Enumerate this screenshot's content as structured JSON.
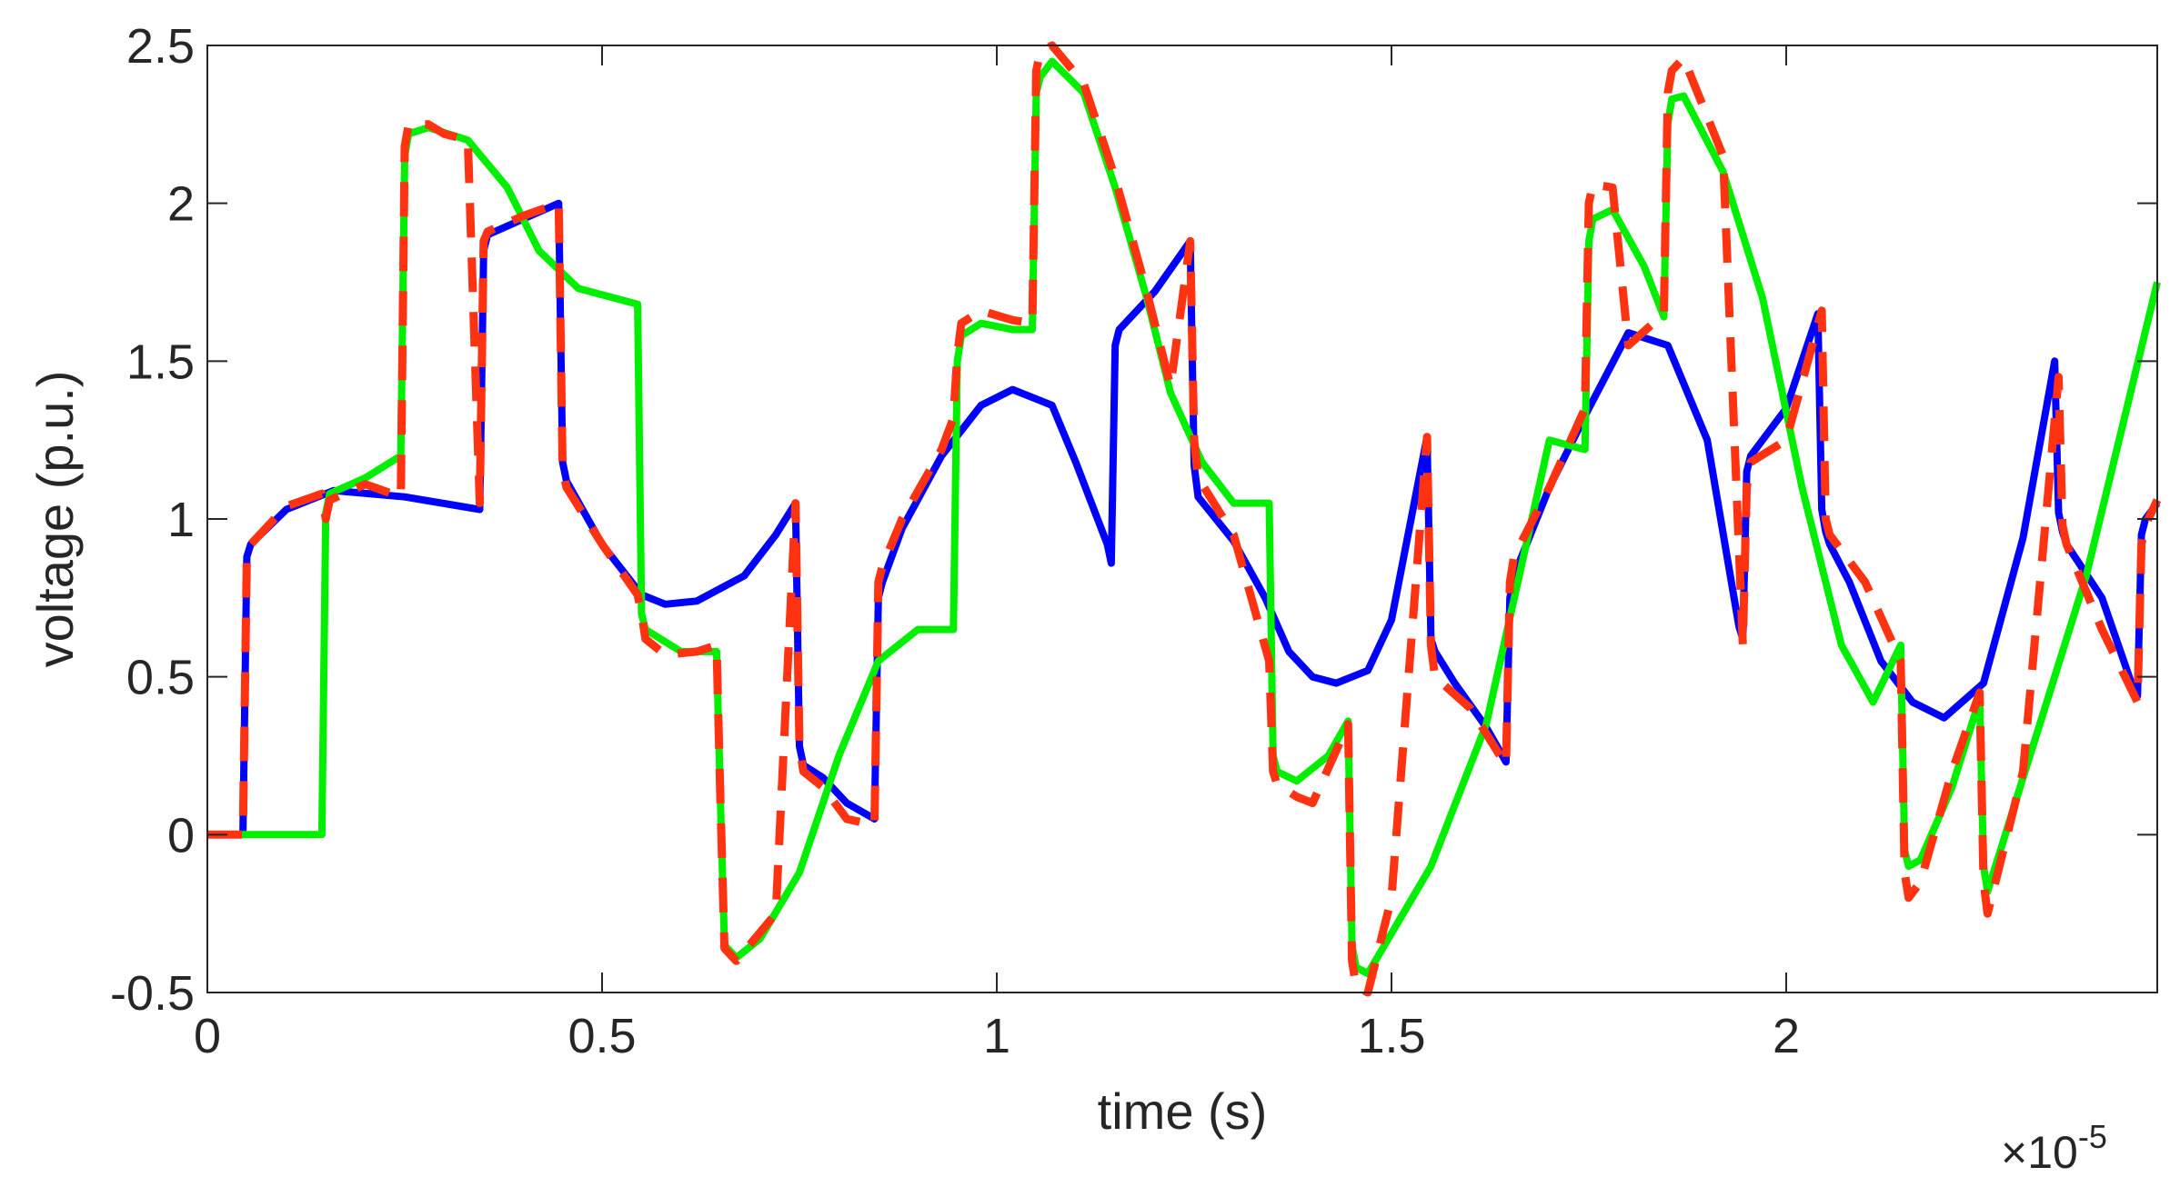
{
  "chart_data": {
    "type": "line",
    "title": "",
    "xlabel": "time (s)",
    "ylabel": "voltage (p.u.)",
    "x_scale_label": {
      "base": "×10",
      "exponent": "-5"
    },
    "xlim": [
      0,
      2.47
    ],
    "ylim": [
      -0.5,
      2.5
    ],
    "x_ticks": [
      0,
      0.5,
      1,
      1.5,
      2
    ],
    "x_tick_labels": [
      "0",
      "0.5",
      "1",
      "1.5",
      "2"
    ],
    "y_ticks": [
      -0.5,
      0,
      0.5,
      1,
      1.5,
      2,
      2.5
    ],
    "y_tick_labels": [
      "-0.5",
      "0",
      "0.5",
      "1",
      "1.5",
      "2",
      "2.5"
    ],
    "grid": false,
    "legend": "none",
    "series": [
      {
        "color": "#0000ff",
        "style": "solid",
        "x": [
          0,
          0.045,
          0.05,
          0.055,
          0.1,
          0.16,
          0.25,
          0.345,
          0.35,
          0.355,
          0.4,
          0.445,
          0.45,
          0.455,
          0.5,
          0.55,
          0.58,
          0.62,
          0.68,
          0.72,
          0.745,
          0.75,
          0.755,
          0.78,
          0.81,
          0.845,
          0.85,
          0.855,
          0.88,
          0.93,
          0.98,
          1.02,
          1.07,
          1.1,
          1.14,
          1.145,
          1.15,
          1.155,
          1.2,
          1.245,
          1.25,
          1.255,
          1.3,
          1.34,
          1.37,
          1.4,
          1.43,
          1.47,
          1.5,
          1.545,
          1.55,
          1.555,
          1.58,
          1.62,
          1.645,
          1.65,
          1.655,
          1.7,
          1.75,
          1.8,
          1.85,
          1.9,
          1.94,
          1.945,
          1.95,
          1.955,
          2.0,
          2.04,
          2.045,
          2.05,
          2.055,
          2.08,
          2.12,
          2.16,
          2.2,
          2.25,
          2.3,
          2.34,
          2.345,
          2.35,
          2.355,
          2.4,
          2.44,
          2.445,
          2.45,
          2.455,
          2.47
        ],
        "y": [
          0,
          0,
          0.88,
          0.92,
          1.03,
          1.09,
          1.07,
          1.03,
          1.85,
          1.9,
          1.95,
          2.0,
          1.18,
          1.12,
          0.92,
          0.76,
          0.73,
          0.74,
          0.82,
          0.95,
          1.05,
          0.28,
          0.22,
          0.18,
          0.1,
          0.05,
          0.75,
          0.8,
          0.97,
          1.2,
          1.36,
          1.41,
          1.36,
          1.18,
          0.92,
          0.86,
          1.55,
          1.6,
          1.72,
          1.88,
          1.17,
          1.07,
          0.93,
          0.75,
          0.58,
          0.5,
          0.48,
          0.52,
          0.68,
          1.26,
          0.62,
          0.58,
          0.48,
          0.34,
          0.23,
          0.75,
          0.82,
          1.1,
          1.35,
          1.59,
          1.55,
          1.25,
          0.66,
          0.62,
          1.15,
          1.2,
          1.35,
          1.65,
          1.03,
          0.96,
          0.92,
          0.8,
          0.55,
          0.42,
          0.37,
          0.48,
          0.94,
          1.5,
          1.02,
          0.96,
          0.92,
          0.75,
          0.46,
          0.44,
          0.95,
          1.0,
          1.05
        ]
      },
      {
        "color": "#00ee00",
        "style": "solid",
        "x": [
          0,
          0.145,
          0.15,
          0.155,
          0.2,
          0.245,
          0.25,
          0.255,
          0.28,
          0.33,
          0.38,
          0.42,
          0.47,
          0.545,
          0.55,
          0.555,
          0.6,
          0.645,
          0.65,
          0.655,
          0.67,
          0.7,
          0.75,
          0.8,
          0.85,
          0.9,
          0.945,
          0.95,
          0.955,
          0.98,
          1.02,
          1.045,
          1.05,
          1.055,
          1.07,
          1.11,
          1.15,
          1.19,
          1.22,
          1.26,
          1.3,
          1.345,
          1.35,
          1.355,
          1.38,
          1.42,
          1.445,
          1.45,
          1.455,
          1.47,
          1.55,
          1.62,
          1.7,
          1.745,
          1.75,
          1.755,
          1.78,
          1.82,
          1.845,
          1.85,
          1.855,
          1.87,
          1.92,
          1.97,
          2.02,
          2.07,
          2.11,
          2.145,
          2.15,
          2.155,
          2.17,
          2.21,
          2.245,
          2.25,
          2.255,
          2.3,
          2.38,
          2.47
        ],
        "y": [
          0,
          0,
          1.02,
          1.08,
          1.13,
          1.2,
          2.15,
          2.22,
          2.24,
          2.2,
          2.05,
          1.85,
          1.73,
          1.68,
          0.7,
          0.65,
          0.58,
          0.58,
          0.1,
          -0.35,
          -0.39,
          -0.33,
          -0.12,
          0.25,
          0.55,
          0.65,
          0.65,
          1.5,
          1.58,
          1.62,
          1.6,
          1.6,
          2.35,
          2.4,
          2.45,
          2.35,
          2.05,
          1.7,
          1.4,
          1.18,
          1.05,
          1.05,
          0.25,
          0.2,
          0.17,
          0.25,
          0.36,
          -0.35,
          -0.42,
          -0.44,
          -0.1,
          0.35,
          1.25,
          1.22,
          1.88,
          1.95,
          1.98,
          1.8,
          1.64,
          2.25,
          2.33,
          2.34,
          2.1,
          1.7,
          1.1,
          0.6,
          0.42,
          0.6,
          -0.05,
          -0.1,
          -0.08,
          0.15,
          0.43,
          -0.1,
          -0.18,
          0.18,
          0.82,
          1.75
        ]
      },
      {
        "color": "#ff3311",
        "style": "dashed",
        "x": [
          0,
          0.045,
          0.05,
          0.055,
          0.1,
          0.145,
          0.15,
          0.155,
          0.2,
          0.245,
          0.25,
          0.255,
          0.28,
          0.3,
          0.33,
          0.345,
          0.35,
          0.355,
          0.4,
          0.445,
          0.45,
          0.455,
          0.5,
          0.545,
          0.55,
          0.555,
          0.58,
          0.62,
          0.645,
          0.65,
          0.655,
          0.67,
          0.72,
          0.745,
          0.75,
          0.755,
          0.78,
          0.81,
          0.845,
          0.85,
          0.855,
          0.88,
          0.93,
          0.945,
          0.95,
          0.955,
          0.98,
          1.02,
          1.045,
          1.05,
          1.055,
          1.07,
          1.11,
          1.15,
          1.19,
          1.22,
          1.245,
          1.25,
          1.255,
          1.3,
          1.345,
          1.35,
          1.355,
          1.38,
          1.4,
          1.445,
          1.45,
          1.455,
          1.47,
          1.5,
          1.545,
          1.55,
          1.555,
          1.6,
          1.645,
          1.65,
          1.655,
          1.7,
          1.745,
          1.75,
          1.755,
          1.78,
          1.8,
          1.845,
          1.85,
          1.855,
          1.87,
          1.92,
          1.945,
          1.95,
          1.955,
          2.0,
          2.045,
          2.05,
          2.055,
          2.1,
          2.145,
          2.15,
          2.155,
          2.17,
          2.21,
          2.245,
          2.25,
          2.255,
          2.3,
          2.345,
          2.35,
          2.355,
          2.4,
          2.445,
          2.45,
          2.455,
          2.47
        ],
        "y": [
          0,
          0,
          0.88,
          0.92,
          1.04,
          1.08,
          1.0,
          1.06,
          1.11,
          1.07,
          2.18,
          2.25,
          2.25,
          2.22,
          2.2,
          1.05,
          1.88,
          1.91,
          1.96,
          2.0,
          1.16,
          1.1,
          0.92,
          0.76,
          0.7,
          0.62,
          0.57,
          0.58,
          0.6,
          0.1,
          -0.36,
          -0.4,
          -0.25,
          1.05,
          0.28,
          0.2,
          0.15,
          0.05,
          0.03,
          0.8,
          0.85,
          1.0,
          1.22,
          1.32,
          1.52,
          1.62,
          1.66,
          1.63,
          1.62,
          2.42,
          2.48,
          2.5,
          2.38,
          2.08,
          1.72,
          1.42,
          1.88,
          1.25,
          1.13,
          0.95,
          0.55,
          0.2,
          0.16,
          0.12,
          0.1,
          0.35,
          -0.4,
          -0.48,
          -0.5,
          -0.2,
          1.26,
          0.6,
          0.5,
          0.4,
          0.22,
          0.8,
          0.88,
          1.1,
          1.35,
          2.0,
          2.06,
          2.05,
          1.55,
          1.65,
          2.35,
          2.42,
          2.46,
          2.15,
          0.6,
          1.1,
          1.18,
          1.25,
          1.66,
          1.0,
          0.95,
          0.8,
          0.55,
          -0.12,
          -0.2,
          -0.15,
          0.2,
          0.45,
          -0.15,
          -0.25,
          0.2,
          1.45,
          0.98,
          0.92,
          0.65,
          0.42,
          0.92,
          0.98,
          1.06
        ]
      }
    ]
  }
}
